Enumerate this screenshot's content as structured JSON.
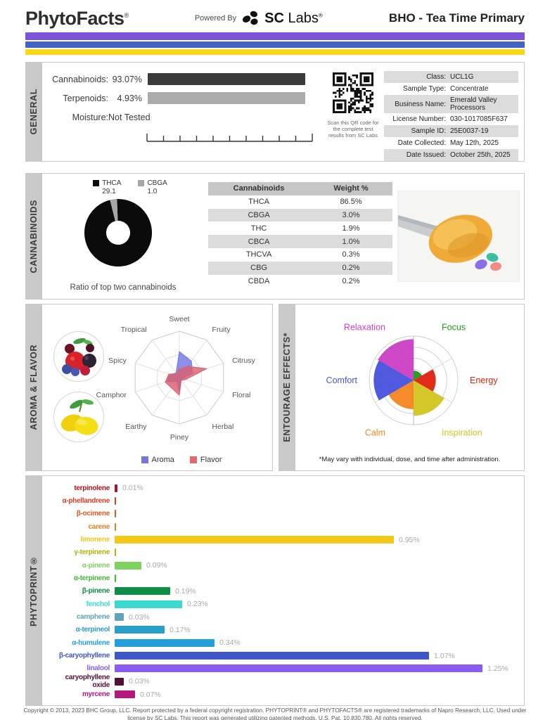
{
  "header": {
    "brand": "PhytoFacts",
    "brand_reg": "®",
    "powered_by": "Powered By",
    "lab_bold": "SC",
    "lab_rest": " Labs",
    "lab_reg": "®",
    "report_title": "BHO - Tea Time Primary"
  },
  "stripes": {
    "purple": "#7b52d8",
    "blue": "#4262c4",
    "yellow": "#f6d816"
  },
  "general": {
    "tab": "GENERAL",
    "metrics": [
      {
        "label": "Cannabinoids:",
        "value": "93.07%",
        "bar_color": "#3b3b3b"
      },
      {
        "label": "Terpenoids:",
        "value": "4.93%",
        "bar_color": "#ababab"
      },
      {
        "label": "Moisture:",
        "value": "Not Tested",
        "bar_color": null
      }
    ],
    "qr_caption": "Scan this QR code for the complete test results from SC Labs",
    "info_rows": [
      {
        "label": "Class:",
        "value": "UCL1G"
      },
      {
        "label": "Sample Type:",
        "value": "Concentrate"
      },
      {
        "label": "Business Name:",
        "value": "Emerald Valley Processors"
      },
      {
        "label": "License Number:",
        "value": "030-1017085F637"
      },
      {
        "label": "Sample ID:",
        "value": "25E0037-19"
      },
      {
        "label": "Date Collected:",
        "value": "May 12th, 2025"
      },
      {
        "label": "Date Issued:",
        "value": "October 25th, 2025"
      }
    ]
  },
  "cannabinoids": {
    "tab": "CANNABINOIDS",
    "donut_caption": "Ratio of top two cannabinoids",
    "legend": [
      {
        "name": "THCA",
        "value": "29.1",
        "color": "#0b0b0b"
      },
      {
        "name": "CBGA",
        "value": "1.0",
        "color": "#a6a6a6"
      }
    ]
  },
  "aroma_flavor": {
    "tab": "AROMA & FLAVOR",
    "legend": [
      {
        "name": "Aroma",
        "color": "#7477e0"
      },
      {
        "name": "Flavor",
        "color": "#e0696e"
      }
    ]
  },
  "entourage": {
    "tab": "ENTOURAGE EFFECTS*",
    "footnote": "*May vary with individual, dose, and time after administration."
  },
  "phytoprint": {
    "tab": "PHYTOPRINT®"
  },
  "footer": {
    "text": "Copyright © 2013, 2023 BHC Group, LLC. Report protected by a federal copyright registration. PHYTOPRINT® and PHYTOFACTS® are registered trademarks of Napro Research, LLC. Used under license by SC Labs. This report was generated utilizing patented methods. U.S. Pat. 10,830,780. All rights reserved."
  },
  "chart_data": [
    {
      "type": "bar",
      "name": "general-composition",
      "categories": [
        "Cannabinoids",
        "Terpenoids",
        "Moisture"
      ],
      "values": [
        93.07,
        4.93,
        null
      ],
      "unit": "%",
      "note": "Moisture not tested"
    },
    {
      "type": "pie",
      "name": "cannabinoid-ratio-donut",
      "donut": true,
      "title": "Ratio of top two cannabinoids",
      "labels": [
        "THCA",
        "CBGA"
      ],
      "values": [
        29.1,
        1.0
      ],
      "colors": [
        "#0b0b0b",
        "#a6a6a6"
      ]
    },
    {
      "type": "table",
      "name": "cannabinoid-table",
      "headers": [
        "Cannabinoids",
        "Weight %"
      ],
      "rows": [
        [
          "THCA",
          "86.5%"
        ],
        [
          "CBGA",
          "3.0%"
        ],
        [
          "THC",
          "1.9%"
        ],
        [
          "CBCA",
          "1.0%"
        ],
        [
          "THCVA",
          "0.3%"
        ],
        [
          "CBG",
          "0.2%"
        ],
        [
          "CBDA",
          "0.2%"
        ]
      ]
    },
    {
      "type": "radar",
      "name": "aroma-flavor-radar",
      "categories": [
        "Sweet",
        "Fruity",
        "Citrusy",
        "Floral",
        "Herbal",
        "Piney",
        "Earthy",
        "Camphor",
        "Spicy",
        "Tropical"
      ],
      "scale": [
        0,
        1
      ],
      "series": [
        {
          "name": "Aroma",
          "color": "#7477e0",
          "values": [
            0.56,
            0.44,
            0.3,
            0.07,
            0.05,
            0.3,
            0.1,
            0.28,
            0.22,
            0.12
          ]
        },
        {
          "name": "Flavor",
          "color": "#d9606e",
          "values": [
            0.18,
            0.3,
            0.62,
            0.14,
            0.07,
            0.38,
            0.28,
            0.32,
            0.24,
            0.1
          ]
        }
      ]
    },
    {
      "type": "polar",
      "name": "entourage-effects-polar",
      "scale": [
        0,
        1
      ],
      "sectors": [
        {
          "label": "Focus",
          "color": "#1e9b1e",
          "value": 0.22
        },
        {
          "label": "Energy",
          "color": "#e0230e",
          "value": 0.5
        },
        {
          "label": "Inspiration",
          "color": "#d2c520",
          "value": 0.8
        },
        {
          "label": "Calm",
          "color": "#f5861f",
          "value": 0.65
        },
        {
          "label": "Comfort",
          "color": "#4a52de",
          "value": 0.9
        },
        {
          "label": "Relaxation",
          "color": "#cb3fc4",
          "value": 0.93
        }
      ]
    },
    {
      "type": "bar",
      "name": "phytoprint-terpenes",
      "orientation": "horizontal",
      "unit": "%",
      "bars": [
        {
          "name": "terpinolene",
          "color": "#b0121e",
          "value": 0.01
        },
        {
          "name": "α-phellandrene",
          "color": "#e23a24",
          "value": null
        },
        {
          "name": "β-ocimene",
          "color": "#e55722",
          "value": null
        },
        {
          "name": "carene",
          "color": "#e37d20",
          "value": null
        },
        {
          "name": "limonene",
          "color": "#f3c61a",
          "value": 0.95
        },
        {
          "name": "γ-terpinene",
          "color": "#b0b212",
          "value": null
        },
        {
          "name": "α-pinene",
          "color": "#7ed25f",
          "value": 0.09
        },
        {
          "name": "α-terpinene",
          "color": "#46b33c",
          "value": null
        },
        {
          "name": "β-pinene",
          "color": "#0f8d47",
          "value": 0.19
        },
        {
          "name": "fenchol",
          "color": "#39d9cf",
          "value": 0.23
        },
        {
          "name": "camphene",
          "color": "#63a3b8",
          "value": 0.03
        },
        {
          "name": "α-terpineol",
          "color": "#2a9fc9",
          "value": 0.17
        },
        {
          "name": "α-humulene",
          "color": "#219fdc",
          "value": 0.34
        },
        {
          "name": "β-caryophyllene",
          "color": "#3d56c9",
          "value": 1.07
        },
        {
          "name": "linalool",
          "color": "#8b5cf2",
          "value": 1.25
        },
        {
          "name": "caryophyllene oxide",
          "color": "#4f1135",
          "value": 0.03
        },
        {
          "name": "myrcene",
          "color": "#b7157e",
          "value": 0.07
        }
      ]
    }
  ]
}
